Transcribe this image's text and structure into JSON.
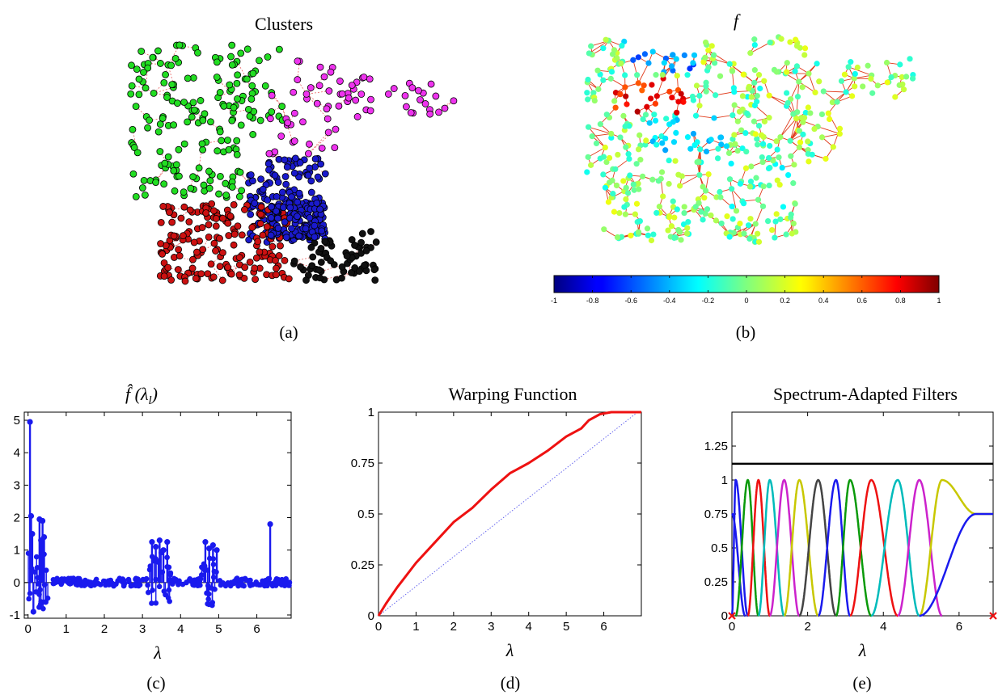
{
  "panels": {
    "a": {
      "title": "Clusters",
      "sub": "(a)"
    },
    "b": {
      "title": "f",
      "sub": "(b)"
    },
    "c": {
      "title": "f̂ (λ",
      "title_sub": "l",
      "title_close": ")",
      "sub": "(c)"
    },
    "d": {
      "title": "Warping Function",
      "sub": "(d)"
    },
    "e": {
      "title": "Spectrum-Adapted Filters",
      "sub": "(e)"
    }
  },
  "colorbar": {
    "range": [
      -1,
      1
    ],
    "ticks": [
      "-1",
      "-0.8",
      "-0.6",
      "-0.4",
      "-0.2",
      "0",
      "0.2",
      "0.4",
      "0.6",
      "0.8",
      "1"
    ]
  },
  "colors": {
    "green": "#22dd22",
    "magenta": "#ee33ee",
    "blue": "#1a1acc",
    "red": "#cc1111",
    "black": "#111111",
    "edge_a": "#e86060",
    "edge_b": "#e03a1a",
    "stem": "#1a1aee",
    "warp": "#ee1111",
    "identity": "#6666ee"
  },
  "chart_data": [
    {
      "type": "scatter",
      "name": "clusters",
      "title": "Clusters",
      "series": [
        {
          "name": "cluster-green"
        },
        {
          "name": "cluster-magenta"
        },
        {
          "name": "cluster-blue"
        },
        {
          "name": "cluster-red"
        },
        {
          "name": "cluster-black"
        }
      ]
    },
    {
      "type": "scatter",
      "name": "signal",
      "title": "f",
      "colorbar_range": [
        -1,
        1
      ]
    },
    {
      "type": "bar",
      "name": "spectrum",
      "xlabel": "λ",
      "xlim": [
        -0.1,
        6.9
      ],
      "ylim": [
        -1.1,
        5.25
      ],
      "xticks": [
        "0",
        "1",
        "2",
        "3",
        "4",
        "5",
        "6"
      ],
      "yticks": [
        "-1",
        "0",
        "1",
        "2",
        "3",
        "4",
        "5"
      ],
      "stems": {
        "x": [
          0.05,
          0.08,
          0.11,
          0.14,
          0.3,
          0.34,
          0.38,
          0.42,
          0.46,
          3.25,
          3.35,
          3.45,
          3.55,
          3.65,
          4.65,
          4.75,
          4.85,
          4.95,
          6.35
        ],
        "y": [
          4.95,
          2.05,
          1.5,
          -0.9,
          1.95,
          1.3,
          1.9,
          1.4,
          -0.6,
          1.25,
          1.1,
          1.3,
          1.0,
          1.25,
          1.25,
          1.05,
          1.15,
          1.0,
          1.8
        ]
      }
    },
    {
      "type": "line",
      "name": "warping",
      "title": "Warping Function",
      "xlabel": "λ",
      "xlim": [
        0,
        7
      ],
      "ylim": [
        0,
        1
      ],
      "xticks": [
        "0",
        "1",
        "2",
        "3",
        "4",
        "5",
        "6"
      ],
      "yticks": [
        "0",
        "0.25",
        "0.5",
        "0.75",
        "1"
      ],
      "series": [
        {
          "x": [
            0,
            0.2,
            0.5,
            1,
            1.5,
            2,
            2.5,
            3,
            3.5,
            4,
            4.5,
            5,
            5.4,
            5.6,
            5.9,
            6.2,
            6.5,
            6.9
          ],
          "y": [
            0,
            0.06,
            0.14,
            0.26,
            0.36,
            0.46,
            0.53,
            0.62,
            0.7,
            0.75,
            0.81,
            0.88,
            0.92,
            0.96,
            0.99,
            1.0,
            1.0,
            1.0
          ]
        },
        {
          "x": [
            0,
            6.9
          ],
          "y": [
            0,
            1.0
          ]
        }
      ]
    },
    {
      "type": "line",
      "name": "filters",
      "title": "Spectrum-Adapted Filters",
      "xlabel": "λ",
      "xlim": [
        0,
        6.9
      ],
      "ylim": [
        0,
        1.5
      ],
      "xticks": [
        "0",
        "2",
        "4",
        "6"
      ],
      "yticks": [
        "0",
        "0.25",
        "0.5",
        "0.75",
        "1",
        "1.25"
      ],
      "upper_bound": 1.12,
      "tail_level": 0.75,
      "peaks": [
        0.1,
        0.42,
        0.7,
        1.0,
        1.38,
        1.78,
        2.28,
        2.75,
        3.12,
        3.68,
        4.38,
        4.95,
        5.55
      ]
    }
  ]
}
